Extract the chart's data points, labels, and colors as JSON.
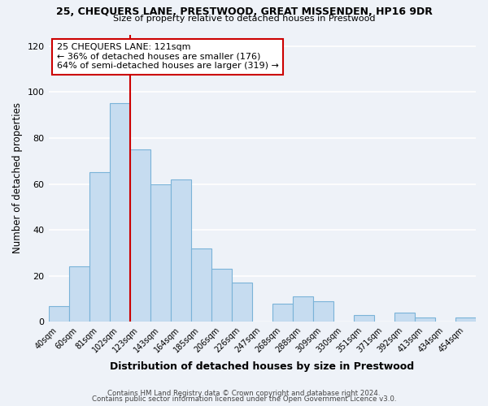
{
  "title1": "25, CHEQUERS LANE, PRESTWOOD, GREAT MISSENDEN, HP16 9DR",
  "title2": "Size of property relative to detached houses in Prestwood",
  "xlabel": "Distribution of detached houses by size in Prestwood",
  "ylabel": "Number of detached properties",
  "bar_color": "#c6dcf0",
  "bar_edge_color": "#7ab3d8",
  "categories": [
    "40sqm",
    "60sqm",
    "81sqm",
    "102sqm",
    "123sqm",
    "143sqm",
    "164sqm",
    "185sqm",
    "206sqm",
    "226sqm",
    "247sqm",
    "268sqm",
    "288sqm",
    "309sqm",
    "330sqm",
    "351sqm",
    "371sqm",
    "392sqm",
    "413sqm",
    "434sqm",
    "454sqm"
  ],
  "values": [
    7,
    24,
    65,
    95,
    75,
    60,
    62,
    32,
    23,
    17,
    0,
    8,
    11,
    9,
    0,
    3,
    0,
    4,
    2,
    0,
    2
  ],
  "vline_index": 4,
  "annotation_title": "25 CHEQUERS LANE: 121sqm",
  "annotation_line1": "← 36% of detached houses are smaller (176)",
  "annotation_line2": "64% of semi-detached houses are larger (319) →",
  "vline_color": "#cc0000",
  "annotation_box_color": "#ffffff",
  "annotation_box_edge": "#cc0000",
  "ylim": [
    0,
    125
  ],
  "yticks": [
    0,
    20,
    40,
    60,
    80,
    100,
    120
  ],
  "footer1": "Contains HM Land Registry data © Crown copyright and database right 2024.",
  "footer2": "Contains public sector information licensed under the Open Government Licence v3.0.",
  "background_color": "#eef2f8",
  "grid_color": "#ffffff"
}
